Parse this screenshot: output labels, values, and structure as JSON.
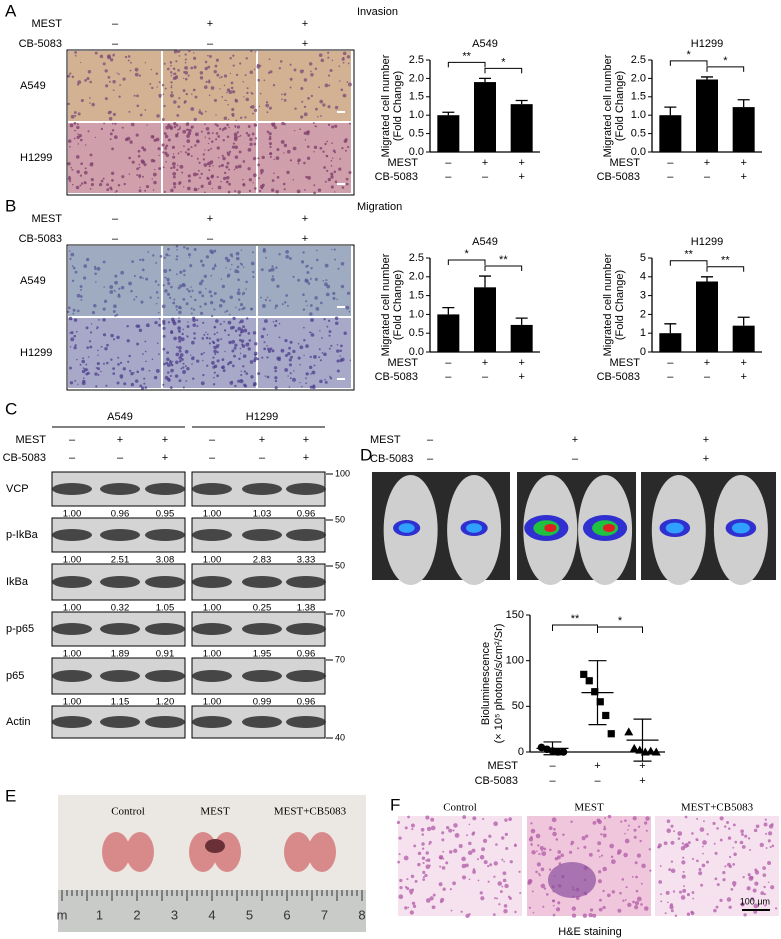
{
  "chart_data": [
    {
      "type": "bar",
      "title": "A549",
      "ylabel": [
        "Migrated cell number",
        "(Fold Change)"
      ],
      "values": [
        1.0,
        1.9,
        1.3
      ],
      "errors": [
        0.08,
        0.1,
        0.1
      ],
      "color": "#000000",
      "ylim": [
        0,
        2.5
      ],
      "yticks": [
        {
          "value": 0,
          "label": "0.0"
        },
        {
          "value": 0.5,
          "label": "0.5"
        },
        {
          "value": 1,
          "label": "1.0"
        },
        {
          "value": 1.5,
          "label": "1.5"
        },
        {
          "value": 2,
          "label": "2.0"
        },
        {
          "value": 2.5,
          "label": "2.5"
        }
      ],
      "significance": [
        "**",
        "*"
      ],
      "conditions": [
        {
          "name": "MEST",
          "signs": [
            "–",
            "+",
            "+"
          ]
        },
        {
          "name": "CB-5083",
          "signs": [
            "–",
            "–",
            "+"
          ]
        }
      ]
    },
    {
      "type": "bar",
      "title": "H1299",
      "ylabel": [
        "Migrated cell number",
        "(Fold Change)"
      ],
      "values": [
        1.0,
        1.97,
        1.22
      ],
      "errors": [
        0.22,
        0.07,
        0.2
      ],
      "color": "#000000",
      "ylim": [
        0,
        2.5
      ],
      "yticks": [
        {
          "value": 0,
          "label": "0.0"
        },
        {
          "value": 0.5,
          "label": "0.5"
        },
        {
          "value": 1,
          "label": "1.0"
        },
        {
          "value": 1.5,
          "label": "1.5"
        },
        {
          "value": 2,
          "label": "2.0"
        },
        {
          "value": 2.5,
          "label": "2.5"
        }
      ],
      "significance": [
        "*",
        "*"
      ],
      "conditions": [
        {
          "name": "MEST",
          "signs": [
            "–",
            "+",
            "+"
          ]
        },
        {
          "name": "CB-5083",
          "signs": [
            "–",
            "–",
            "+"
          ]
        }
      ]
    },
    {
      "type": "bar",
      "title": "A549",
      "ylabel": [
        "Migrated cell number",
        "(Fold Change)"
      ],
      "values": [
        1.0,
        1.72,
        0.72
      ],
      "errors": [
        0.18,
        0.3,
        0.18
      ],
      "color": "#000000",
      "ylim": [
        0,
        2.5
      ],
      "yticks": [
        {
          "value": 0,
          "label": "0.0"
        },
        {
          "value": 0.5,
          "label": "0.5"
        },
        {
          "value": 1,
          "label": "1.0"
        },
        {
          "value": 1.5,
          "label": "1.5"
        },
        {
          "value": 2,
          "label": "2.0"
        },
        {
          "value": 2.5,
          "label": "2.5"
        }
      ],
      "significance": [
        "*",
        "**"
      ],
      "conditions": [
        {
          "name": "MEST",
          "signs": [
            "–",
            "+",
            "+"
          ]
        },
        {
          "name": "CB-5083",
          "signs": [
            "–",
            "–",
            "+"
          ]
        }
      ]
    },
    {
      "type": "bar",
      "title": "H1299",
      "ylabel": [
        "Migrated cell number",
        "(Fold Change)"
      ],
      "values": [
        1.0,
        3.75,
        1.4
      ],
      "errors": [
        0.5,
        0.25,
        0.45
      ],
      "color": "#000000",
      "ylim": [
        0,
        5
      ],
      "yticks": [
        0,
        1,
        2,
        3,
        4,
        5
      ],
      "significance": [
        "**",
        "**"
      ],
      "conditions": [
        {
          "name": "MEST",
          "signs": [
            "–",
            "+",
            "+"
          ]
        },
        {
          "name": "CB-5083",
          "signs": [
            "–",
            "–",
            "+"
          ]
        }
      ]
    },
    {
      "type": "scatter",
      "ylabel": [
        "Bioluminescence",
        "(× 10⁵ photons/s/cm²/Sr)"
      ],
      "groups": [
        {
          "marker": "circle",
          "values": [
            5,
            3,
            1,
            0,
            0
          ]
        },
        {
          "marker": "square",
          "values": [
            85,
            78,
            66,
            55,
            40,
            20
          ]
        },
        {
          "marker": "triangle",
          "values": [
            22,
            4,
            2,
            0,
            1,
            0
          ]
        }
      ],
      "means": [
        4,
        65,
        13
      ],
      "sd": [
        7,
        35,
        23
      ],
      "color": "#000000",
      "ylim": [
        0,
        150
      ],
      "yticks": [
        0,
        50,
        100,
        150
      ],
      "significance": [
        "**",
        "*"
      ],
      "conditions": [
        {
          "name": "MEST",
          "signs": [
            "–",
            "+",
            "+"
          ]
        },
        {
          "name": "CB-5083",
          "signs": [
            "–",
            "–",
            "+"
          ]
        }
      ]
    }
  ],
  "figure": {
    "A": {
      "label": "A",
      "title": "Invasion",
      "rows": [
        "A549",
        "H1299"
      ],
      "conditions": [
        {
          "name": "MEST",
          "signs": [
            "–",
            "+",
            "+"
          ]
        },
        {
          "name": "CB-5083",
          "signs": [
            "–",
            "–",
            "+"
          ]
        }
      ]
    },
    "B": {
      "label": "B",
      "title": "Migration",
      "rows": [
        "A549",
        "H1299"
      ],
      "conditions": [
        {
          "name": "MEST",
          "signs": [
            "–",
            "+",
            "+"
          ]
        },
        {
          "name": "CB-5083",
          "signs": [
            "–",
            "–",
            "+"
          ]
        }
      ]
    },
    "C": {
      "label": "C",
      "cell_lines": [
        "A549",
        "H1299"
      ],
      "conditions": [
        {
          "name": "MEST",
          "signs": [
            "–",
            "+",
            "+",
            "–",
            "+",
            "+"
          ]
        },
        {
          "name": "CB-5083",
          "signs": [
            "–",
            "–",
            "+",
            "–",
            "–",
            "+"
          ]
        }
      ],
      "blots": [
        {
          "protein": "VCP",
          "marker": "100",
          "quant": [
            "1.00",
            "0.96",
            "0.95",
            "1.00",
            "1.03",
            "0.96"
          ]
        },
        {
          "protein": "p-IkBa",
          "marker": "50",
          "quant": [
            "1.00",
            "2.51",
            "3.08",
            "1.00",
            "2.83",
            "3.33"
          ]
        },
        {
          "protein": "IkBa",
          "marker": "50",
          "quant": [
            "1.00",
            "0.32",
            "1.05",
            "1.00",
            "0.25",
            "1.38"
          ]
        },
        {
          "protein": "p-p65",
          "marker": "70",
          "quant": [
            "1.00",
            "1.89",
            "0.91",
            "1.00",
            "1.95",
            "0.96"
          ]
        },
        {
          "protein": "p65",
          "marker": "70",
          "quant": [
            "1.00",
            "1.15",
            "1.20",
            "1.00",
            "0.99",
            "0.96"
          ]
        },
        {
          "protein": "Actin",
          "marker": "40"
        }
      ]
    },
    "D": {
      "label": "D",
      "conditions": [
        {
          "name": "MEST",
          "signs": [
            "–",
            "+",
            "+"
          ]
        },
        {
          "name": "CB-5083",
          "signs": [
            "–",
            "–",
            "+"
          ]
        }
      ]
    },
    "E": {
      "label": "E",
      "groups": [
        "Control",
        "MEST",
        "MEST+CB5083"
      ],
      "ruler": [
        "m",
        "1",
        "2",
        "3",
        "4",
        "5",
        "6",
        "7",
        "8"
      ]
    },
    "F": {
      "label": "F",
      "groups": [
        "Control",
        "MEST",
        "MEST+CB5083"
      ],
      "scale": "100 μm",
      "caption": "H&E staining"
    }
  }
}
